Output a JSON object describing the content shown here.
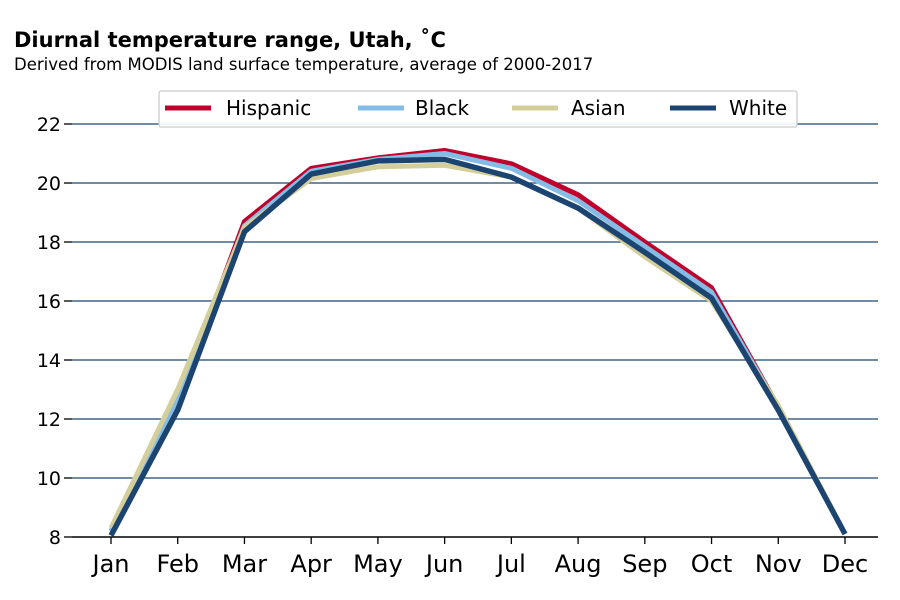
{
  "header": {
    "title": "Diurnal temperature range, Utah, ˚C",
    "subtitle": "Derived from MODIS land surface temperature, average of 2000-2017"
  },
  "chart_data": {
    "type": "line",
    "title": "Diurnal temperature range, Utah, ˚C",
    "subtitle": "Derived from MODIS land surface temperature, average of 2000-2017",
    "xlabel": "",
    "ylabel": "",
    "categories": [
      "Jan",
      "Feb",
      "Mar",
      "Apr",
      "May",
      "Jun",
      "Jul",
      "Aug",
      "Sep",
      "Oct",
      "Nov",
      "Dec"
    ],
    "ylim": [
      8,
      22
    ],
    "yticks": [
      8,
      10,
      12,
      14,
      16,
      18,
      20,
      22
    ],
    "grid": "horizontal",
    "legend_position": "top-center",
    "series": [
      {
        "name": "Hispanic",
        "color": "#c0002a",
        "values": [
          8.2,
          12.6,
          18.7,
          20.5,
          20.85,
          21.1,
          20.65,
          19.6,
          18.0,
          16.45,
          12.4,
          8.1
        ]
      },
      {
        "name": "Black",
        "color": "#85bce6",
        "values": [
          8.2,
          12.7,
          18.55,
          20.4,
          20.8,
          21.0,
          20.5,
          19.4,
          17.85,
          16.3,
          12.4,
          8.1
        ]
      },
      {
        "name": "Asian",
        "color": "#d4cf9a",
        "values": [
          8.3,
          13.0,
          18.5,
          20.15,
          20.55,
          20.6,
          20.2,
          19.15,
          17.5,
          16.0,
          12.45,
          8.1
        ]
      },
      {
        "name": "White",
        "color": "#1c4470",
        "values": [
          8.05,
          12.3,
          18.35,
          20.3,
          20.75,
          20.8,
          20.2,
          19.15,
          17.65,
          16.1,
          12.3,
          8.1
        ]
      }
    ]
  }
}
